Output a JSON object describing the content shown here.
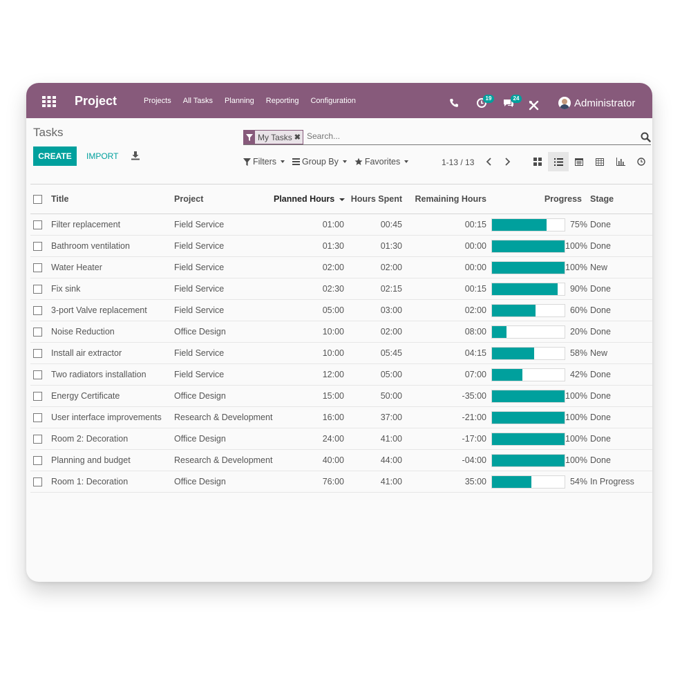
{
  "navbar": {
    "brand": "Project",
    "menu": [
      "Projects",
      "All Tasks",
      "Planning",
      "Reporting",
      "Configuration"
    ],
    "activities_count": "19",
    "messages_count": "24",
    "user_name": "Administrator",
    "icons": [
      "apps-grid-icon",
      "phone-icon",
      "activity-clock-icon",
      "chat-icon",
      "debug-tools-icon",
      "avatar"
    ]
  },
  "control_panel": {
    "breadcrumb": "Tasks",
    "create_label": "CREATE",
    "import_label": "IMPORT",
    "search": {
      "facet_label": "My Tasks",
      "placeholder": "Search..."
    },
    "filters_label": "Filters",
    "groupby_label": "Group By",
    "favorites_label": "Favorites",
    "pager_value": "1-13",
    "pager_total": "13",
    "views": [
      "kanban",
      "list",
      "calendar",
      "pivot",
      "graph",
      "activity"
    ],
    "active_view": "list"
  },
  "table": {
    "columns": {
      "title": "Title",
      "project": "Project",
      "planned": "Planned Hours",
      "spent": "Hours Spent",
      "remaining": "Remaining Hours",
      "progress": "Progress",
      "stage": "Stage"
    },
    "sorted_by": "Planned Hours",
    "rows": [
      {
        "title": "Filter replacement",
        "project": "Field Service",
        "planned": "01:00",
        "spent": "00:45",
        "remaining": "00:15",
        "progress": 75,
        "progress_label": "75%",
        "stage": "Done"
      },
      {
        "title": "Bathroom ventilation",
        "project": "Field Service",
        "planned": "01:30",
        "spent": "01:30",
        "remaining": "00:00",
        "progress": 100,
        "progress_label": "100%",
        "stage": "Done"
      },
      {
        "title": "Water Heater",
        "project": "Field Service",
        "planned": "02:00",
        "spent": "02:00",
        "remaining": "00:00",
        "progress": 100,
        "progress_label": "100%",
        "stage": "New"
      },
      {
        "title": "Fix sink",
        "project": "Field Service",
        "planned": "02:30",
        "spent": "02:15",
        "remaining": "00:15",
        "progress": 90,
        "progress_label": "90%",
        "stage": "Done"
      },
      {
        "title": "3-port Valve replacement",
        "project": "Field Service",
        "planned": "05:00",
        "spent": "03:00",
        "remaining": "02:00",
        "progress": 60,
        "progress_label": "60%",
        "stage": "Done"
      },
      {
        "title": "Noise Reduction",
        "project": "Office Design",
        "planned": "10:00",
        "spent": "02:00",
        "remaining": "08:00",
        "progress": 20,
        "progress_label": "20%",
        "stage": "Done"
      },
      {
        "title": "Install air extractor",
        "project": "Field Service",
        "planned": "10:00",
        "spent": "05:45",
        "remaining": "04:15",
        "progress": 58,
        "progress_label": "58%",
        "stage": "New"
      },
      {
        "title": "Two radiators installation",
        "project": "Field Service",
        "planned": "12:00",
        "spent": "05:00",
        "remaining": "07:00",
        "progress": 42,
        "progress_label": "42%",
        "stage": "Done"
      },
      {
        "title": "Energy Certificate",
        "project": "Office Design",
        "planned": "15:00",
        "spent": "50:00",
        "remaining": "-35:00",
        "progress": 100,
        "progress_label": "100%",
        "stage": "Done"
      },
      {
        "title": "User interface improvements",
        "project": "Research & Development",
        "planned": "16:00",
        "spent": "37:00",
        "remaining": "-21:00",
        "progress": 100,
        "progress_label": "100%",
        "stage": "Done"
      },
      {
        "title": "Room 2: Decoration",
        "project": "Office Design",
        "planned": "24:00",
        "spent": "41:00",
        "remaining": "-17:00",
        "progress": 100,
        "progress_label": "100%",
        "stage": "Done"
      },
      {
        "title": "Planning and budget",
        "project": "Research & Development",
        "planned": "40:00",
        "spent": "44:00",
        "remaining": "-04:00",
        "progress": 100,
        "progress_label": "100%",
        "stage": "Done"
      },
      {
        "title": "Room 1: Decoration",
        "project": "Office Design",
        "planned": "76:00",
        "spent": "41:00",
        "remaining": "35:00",
        "progress": 54,
        "progress_label": "54%",
        "stage": "In Progress"
      }
    ]
  },
  "colors": {
    "brand": "#875a7b",
    "accent": "#00a09d"
  }
}
